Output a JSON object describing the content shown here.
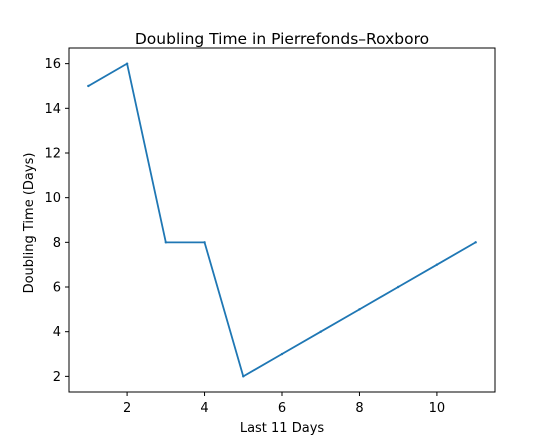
{
  "chart_data": {
    "type": "line",
    "title": "Doubling Time in  Pierrefonds–Roxboro",
    "xlabel": "Last 11 Days",
    "ylabel": "Doubling Time (Days)",
    "xlim": [
      0.5,
      11.5
    ],
    "ylim": [
      1.3,
      16.7
    ],
    "xticks": [
      2,
      4,
      6,
      8,
      10
    ],
    "yticks": [
      2,
      4,
      6,
      8,
      10,
      12,
      14,
      16
    ],
    "grid": false,
    "series": [
      {
        "color": "#1f77b4",
        "x": [
          1,
          2,
          3,
          4,
          5,
          6,
          7,
          8,
          9,
          10,
          11
        ],
        "y": [
          15,
          16,
          8,
          8,
          2,
          3,
          4,
          5,
          6,
          7,
          8
        ]
      }
    ]
  }
}
